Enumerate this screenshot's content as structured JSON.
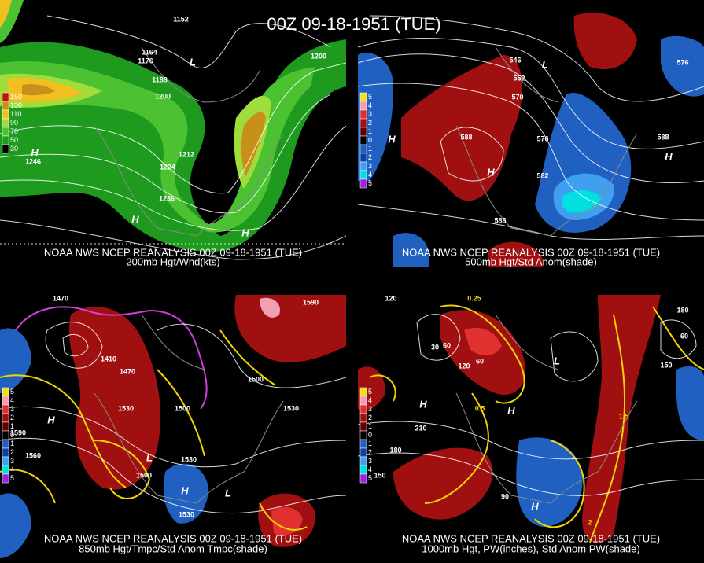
{
  "title": "00Z 09-18-1951 (TUE)",
  "panels": [
    {
      "caption": "NOAA NWS NCEP REANALYSIS 00Z 09-18-1951 (TUE)",
      "subtitle": "200mb Hgt/Wnd(kts)",
      "colorbar": [
        "150",
        "130",
        "110",
        "90",
        "70",
        "50",
        "30"
      ],
      "labels": [
        "1152",
        "1164",
        "1176",
        "1188",
        "1200",
        "1212",
        "1224",
        "1236",
        "1246",
        "1200",
        "H",
        "H",
        "L",
        "H"
      ]
    },
    {
      "caption": "NOAA NWS NCEP REANALYSIS 00Z 09-18-1951 (TUE)",
      "subtitle": "500mb Hgt/Std Anom(shade)",
      "colorbar": [
        "5",
        "4",
        "3",
        "2",
        "1",
        "0",
        "1",
        "2",
        "3",
        "4",
        "5"
      ],
      "labels": [
        "546",
        "552",
        "570",
        "588",
        "576",
        "582",
        "588",
        "588",
        "576",
        "H",
        "H",
        "L",
        "H"
      ]
    },
    {
      "caption": "NOAA NWS NCEP REANALYSIS 00Z 09-18-1951 (TUE)",
      "subtitle": "850mb Hgt/Tmpc/Std Anom Tmpc(shade)",
      "colorbar": [
        "5",
        "4",
        "3",
        "2",
        "1",
        "0",
        "1",
        "2",
        "3",
        "4",
        "5"
      ],
      "labels": [
        "1470",
        "1410",
        "1470",
        "1530",
        "1500",
        "1590",
        "1560",
        "1530",
        "1500",
        "1530",
        "1500",
        "1530",
        "1590",
        "H",
        "L",
        "H",
        "L"
      ]
    },
    {
      "caption": "NOAA NWS NCEP REANALYSIS 00Z 09-18-1951 (TUE)",
      "subtitle": "1000mb Hgt, PW(inches), Std Anom PW(shade)",
      "colorbar": [
        "5",
        "4",
        "3",
        "2",
        "1",
        "0",
        "1",
        "2",
        "3",
        "4",
        "5"
      ],
      "labels": [
        "120",
        "30",
        "60",
        "120",
        "60",
        "210",
        "180",
        "150",
        "90",
        "150",
        "180",
        "60",
        "0.5",
        "1.5",
        "0.25",
        "2",
        "H",
        "H",
        "L",
        "H"
      ]
    }
  ]
}
